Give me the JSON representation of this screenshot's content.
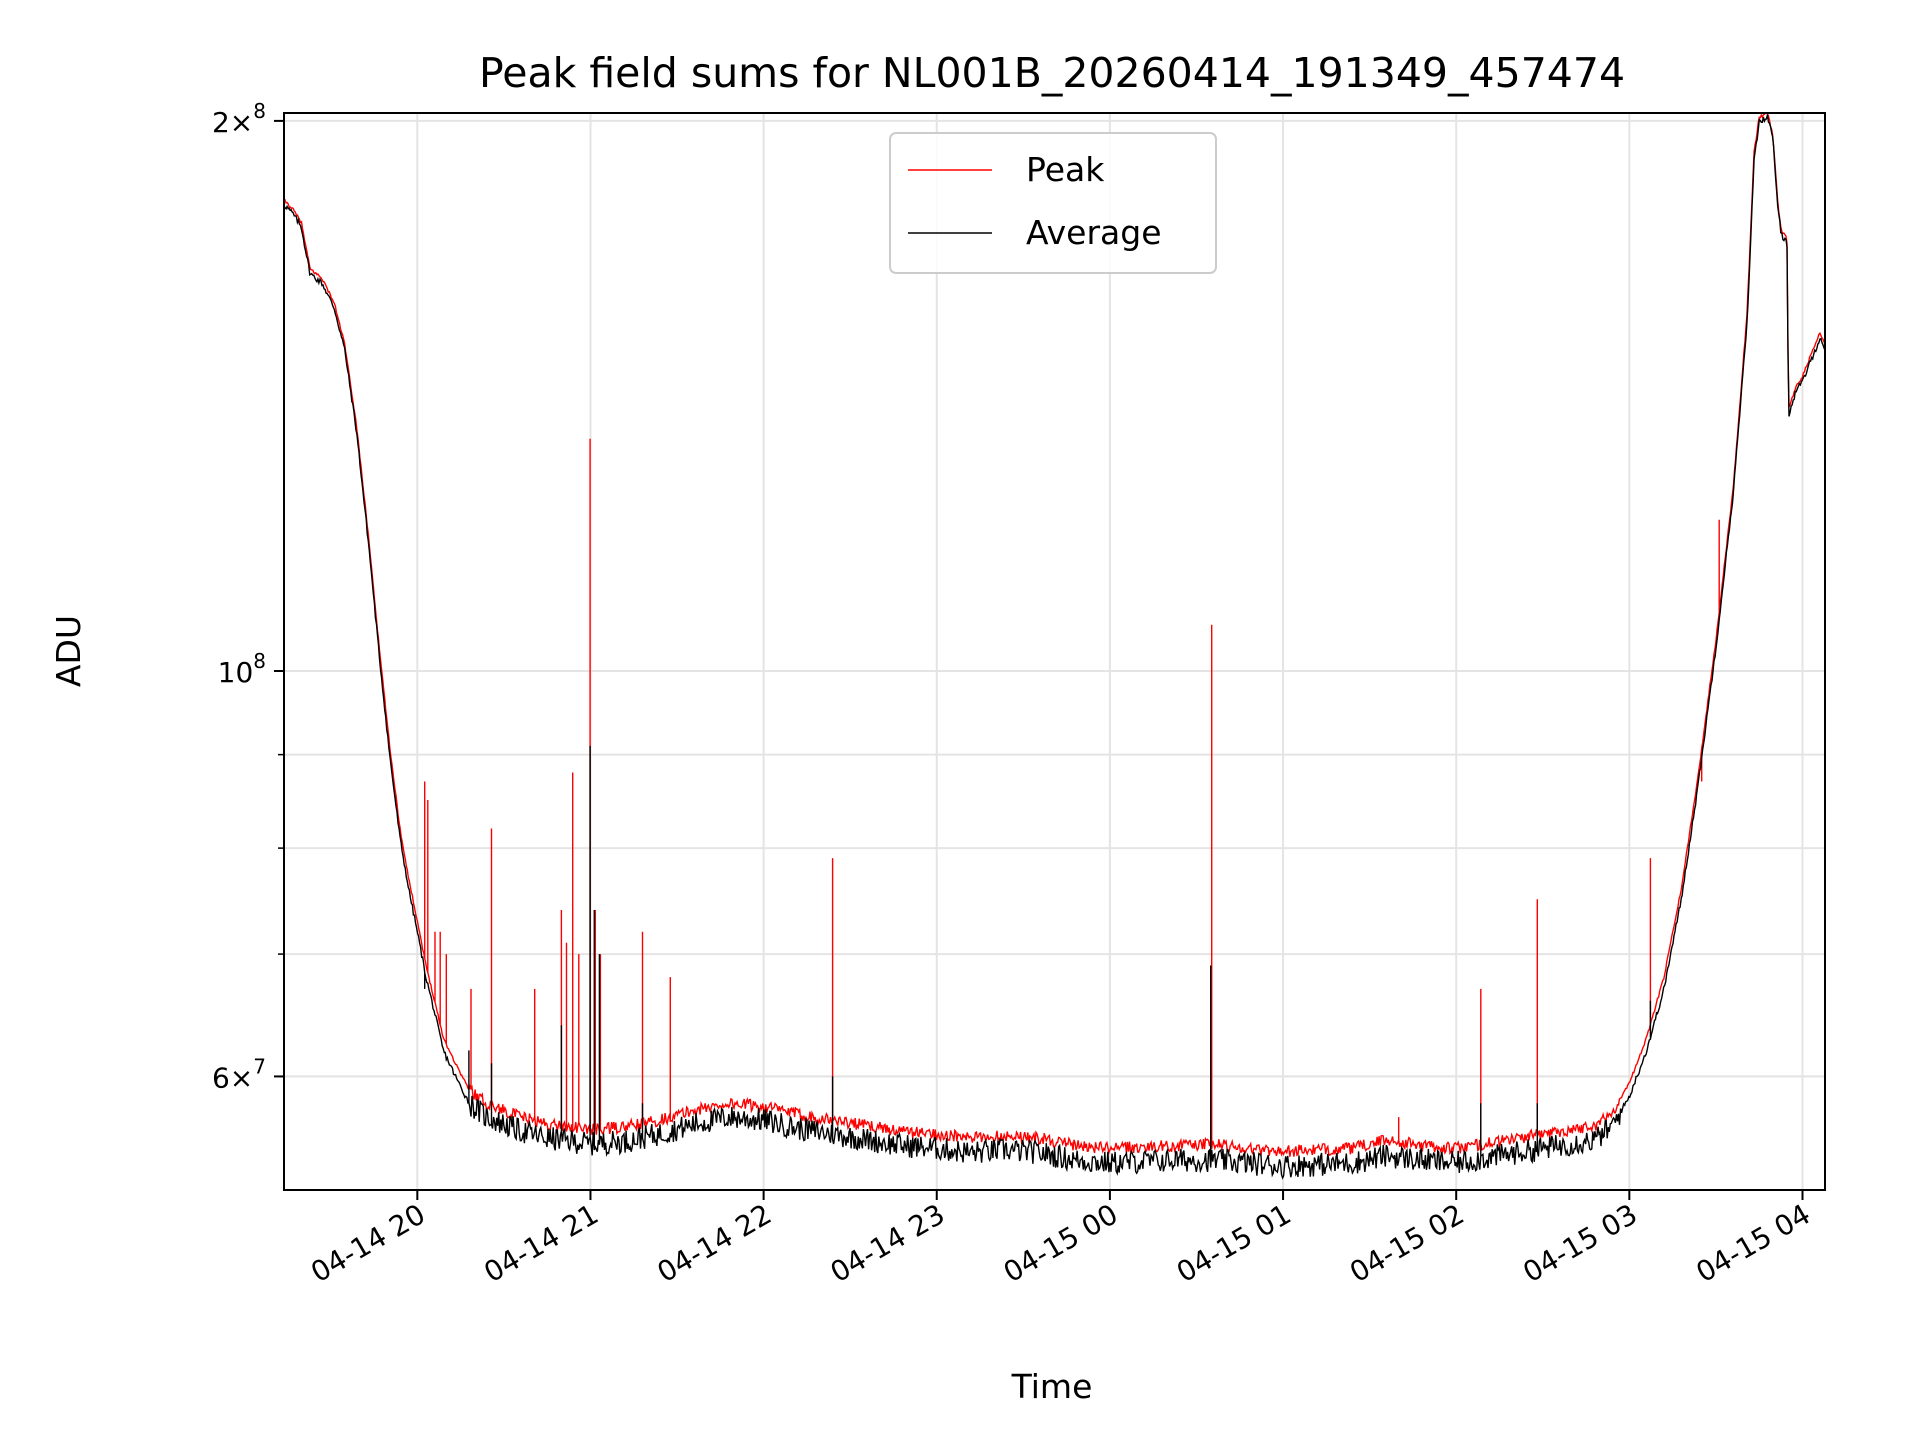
{
  "chart_data": {
    "type": "line",
    "title": "Peak field sums for NL001B_20260414_191349_457474",
    "xlabel": "Time",
    "ylabel": "ADU",
    "yscale": "log",
    "ylim": [
      52000000,
      202000000
    ],
    "xlim_hours": [
      -0.77,
      8.13
    ],
    "x_ticks": [
      {
        "h": 0,
        "label": "04-14 20"
      },
      {
        "h": 1,
        "label": "04-14 21"
      },
      {
        "h": 2,
        "label": "04-14 22"
      },
      {
        "h": 3,
        "label": "04-14 23"
      },
      {
        "h": 4,
        "label": "04-15 00"
      },
      {
        "h": 5,
        "label": "04-15 01"
      },
      {
        "h": 6,
        "label": "04-15 02"
      },
      {
        "h": 7,
        "label": "04-15 03"
      },
      {
        "h": 8,
        "label": "04-15 04"
      }
    ],
    "y_major_ticks": [
      {
        "value": 200000000,
        "mant": "2",
        "exp": "8",
        "times": true
      },
      {
        "value": 100000000,
        "mant": "10",
        "exp": "8",
        "times": false
      },
      {
        "value": 60000000,
        "mant": "6",
        "exp": "7",
        "times": true
      }
    ],
    "y_minor_ticks": [
      60000000,
      70000000,
      80000000,
      90000000
    ],
    "grid": true,
    "legend_position": "upper center",
    "series": [
      {
        "name": "Average",
        "color": "#000000",
        "points": [
          [
            -0.77,
            180000000
          ],
          [
            -0.72,
            178000000
          ],
          [
            -0.67,
            175000000
          ],
          [
            -0.62,
            165000000
          ],
          [
            -0.55,
            163000000
          ],
          [
            -0.48,
            158000000
          ],
          [
            -0.42,
            150000000
          ],
          [
            -0.35,
            135000000
          ],
          [
            -0.28,
            117000000
          ],
          [
            -0.22,
            102000000
          ],
          [
            -0.16,
            90000000
          ],
          [
            -0.1,
            81000000
          ],
          [
            -0.05,
            76000000
          ],
          [
            0,
            72000000
          ],
          [
            0.05,
            68000000
          ],
          [
            0.1,
            65000000
          ],
          [
            0.15,
            62000000
          ],
          [
            0.22,
            60000000
          ],
          [
            0.3,
            58000000
          ],
          [
            0.4,
            57000000
          ],
          [
            0.5,
            56500000
          ],
          [
            0.6,
            56000000
          ],
          [
            0.75,
            55500000
          ],
          [
            0.9,
            55300000
          ],
          [
            1.0,
            55100000
          ],
          [
            1.2,
            55300000
          ],
          [
            1.4,
            55800000
          ],
          [
            1.6,
            56500000
          ],
          [
            1.8,
            57000000
          ],
          [
            2.0,
            56800000
          ],
          [
            2.2,
            56200000
          ],
          [
            2.4,
            55800000
          ],
          [
            2.6,
            55400000
          ],
          [
            2.8,
            55000000
          ],
          [
            3.0,
            54800000
          ],
          [
            3.2,
            54500000
          ],
          [
            3.4,
            54700000
          ],
          [
            3.6,
            54500000
          ],
          [
            3.8,
            54000000
          ],
          [
            4.0,
            53800000
          ],
          [
            4.2,
            53900000
          ],
          [
            4.4,
            54000000
          ],
          [
            4.6,
            54000000
          ],
          [
            4.8,
            53800000
          ],
          [
            5.0,
            53600000
          ],
          [
            5.2,
            53700000
          ],
          [
            5.4,
            53800000
          ],
          [
            5.6,
            54300000
          ],
          [
            5.8,
            54000000
          ],
          [
            6.0,
            53800000
          ],
          [
            6.2,
            54200000
          ],
          [
            6.4,
            54600000
          ],
          [
            6.6,
            55000000
          ],
          [
            6.8,
            55400000
          ],
          [
            6.9,
            56300000
          ],
          [
            7.0,
            58500000
          ],
          [
            7.1,
            62000000
          ],
          [
            7.2,
            67000000
          ],
          [
            7.3,
            75000000
          ],
          [
            7.4,
            87000000
          ],
          [
            7.5,
            103000000
          ],
          [
            7.6,
            125000000
          ],
          [
            7.68,
            155000000
          ],
          [
            7.72,
            190000000
          ],
          [
            7.75,
            200000000
          ],
          [
            7.8,
            201000000
          ],
          [
            7.83,
            195000000
          ],
          [
            7.86,
            178000000
          ],
          [
            7.88,
            173000000
          ],
          [
            7.91,
            172000000
          ],
          [
            7.92,
            138000000
          ],
          [
            7.96,
            142000000
          ],
          [
            8.0,
            144000000
          ],
          [
            8.05,
            148000000
          ],
          [
            8.1,
            152000000
          ],
          [
            8.13,
            150000000
          ]
        ],
        "spikes": [
          [
            0.04,
            67000000
          ],
          [
            0.3,
            62000000
          ],
          [
            0.43,
            61000000
          ],
          [
            0.83,
            64000000
          ],
          [
            1.0,
            91000000
          ],
          [
            1.02,
            74000000
          ],
          [
            1.05,
            70000000
          ],
          [
            1.3,
            58000000
          ],
          [
            2.4,
            60000000
          ],
          [
            4.58,
            69000000
          ],
          [
            6.14,
            58000000
          ],
          [
            6.47,
            58000000
          ],
          [
            7.12,
            66000000
          ]
        ]
      },
      {
        "name": "Peak",
        "color": "#ff0000",
        "points": [
          [
            -0.77,
            181000000
          ],
          [
            -0.72,
            179000000
          ],
          [
            -0.67,
            176000000
          ],
          [
            -0.62,
            166000000
          ],
          [
            -0.55,
            164000000
          ],
          [
            -0.48,
            159000000
          ],
          [
            -0.42,
            151000000
          ],
          [
            -0.35,
            136000000
          ],
          [
            -0.28,
            118000000
          ],
          [
            -0.22,
            103000000
          ],
          [
            -0.16,
            91000000
          ],
          [
            -0.1,
            82000000
          ],
          [
            -0.05,
            77000000
          ],
          [
            0,
            73000000
          ],
          [
            0.05,
            69000000
          ],
          [
            0.1,
            66000000
          ],
          [
            0.15,
            63000000
          ],
          [
            0.22,
            61000000
          ],
          [
            0.3,
            59000000
          ],
          [
            0.4,
            58000000
          ],
          [
            0.5,
            57500000
          ],
          [
            0.6,
            57000000
          ],
          [
            0.75,
            56500000
          ],
          [
            0.9,
            56300000
          ],
          [
            1.0,
            56100000
          ],
          [
            1.2,
            56300000
          ],
          [
            1.4,
            56800000
          ],
          [
            1.6,
            57500000
          ],
          [
            1.8,
            58000000
          ],
          [
            2.0,
            57800000
          ],
          [
            2.2,
            57200000
          ],
          [
            2.4,
            56800000
          ],
          [
            2.6,
            56400000
          ],
          [
            2.8,
            56000000
          ],
          [
            3.0,
            55800000
          ],
          [
            3.2,
            55500000
          ],
          [
            3.4,
            55700000
          ],
          [
            3.6,
            55500000
          ],
          [
            3.8,
            55000000
          ],
          [
            4.0,
            54800000
          ],
          [
            4.2,
            54900000
          ],
          [
            4.4,
            55000000
          ],
          [
            4.6,
            55100000
          ],
          [
            4.8,
            54800000
          ],
          [
            5.0,
            54600000
          ],
          [
            5.2,
            54700000
          ],
          [
            5.4,
            54800000
          ],
          [
            5.6,
            55400000
          ],
          [
            5.8,
            55000000
          ],
          [
            6.0,
            54800000
          ],
          [
            6.2,
            55200000
          ],
          [
            6.4,
            55600000
          ],
          [
            6.6,
            56000000
          ],
          [
            6.8,
            56400000
          ],
          [
            6.9,
            57300000
          ],
          [
            7.0,
            59500000
          ],
          [
            7.1,
            63000000
          ],
          [
            7.2,
            68000000
          ],
          [
            7.3,
            76000000
          ],
          [
            7.4,
            88000000
          ],
          [
            7.5,
            104000000
          ],
          [
            7.6,
            126000000
          ],
          [
            7.68,
            157000000
          ],
          [
            7.72,
            192000000
          ],
          [
            7.75,
            201000000
          ],
          [
            7.8,
            202000000
          ],
          [
            7.83,
            196000000
          ],
          [
            7.86,
            179000000
          ],
          [
            7.88,
            174000000
          ],
          [
            7.91,
            173000000
          ],
          [
            7.92,
            139000000
          ],
          [
            7.96,
            143000000
          ],
          [
            8.0,
            145000000
          ],
          [
            8.05,
            149000000
          ],
          [
            8.1,
            153000000
          ],
          [
            8.13,
            151000000
          ]
        ],
        "spikes": [
          [
            0.04,
            87000000
          ],
          [
            0.06,
            85000000
          ],
          [
            0.1,
            72000000
          ],
          [
            0.13,
            72000000
          ],
          [
            0.17,
            70000000
          ],
          [
            0.31,
            67000000
          ],
          [
            0.43,
            82000000
          ],
          [
            0.68,
            67000000
          ],
          [
            0.83,
            74000000
          ],
          [
            0.86,
            71000000
          ],
          [
            0.9,
            88000000
          ],
          [
            0.93,
            70000000
          ],
          [
            1.0,
            134000000
          ],
          [
            1.03,
            74000000
          ],
          [
            1.06,
            70000000
          ],
          [
            1.3,
            72000000
          ],
          [
            1.46,
            68000000
          ],
          [
            2.4,
            79000000
          ],
          [
            4.59,
            106000000
          ],
          [
            5.67,
            57000000
          ],
          [
            6.14,
            67000000
          ],
          [
            6.47,
            75000000
          ],
          [
            7.12,
            79000000
          ],
          [
            7.42,
            87000000
          ],
          [
            7.52,
            121000000
          ]
        ]
      }
    ]
  }
}
